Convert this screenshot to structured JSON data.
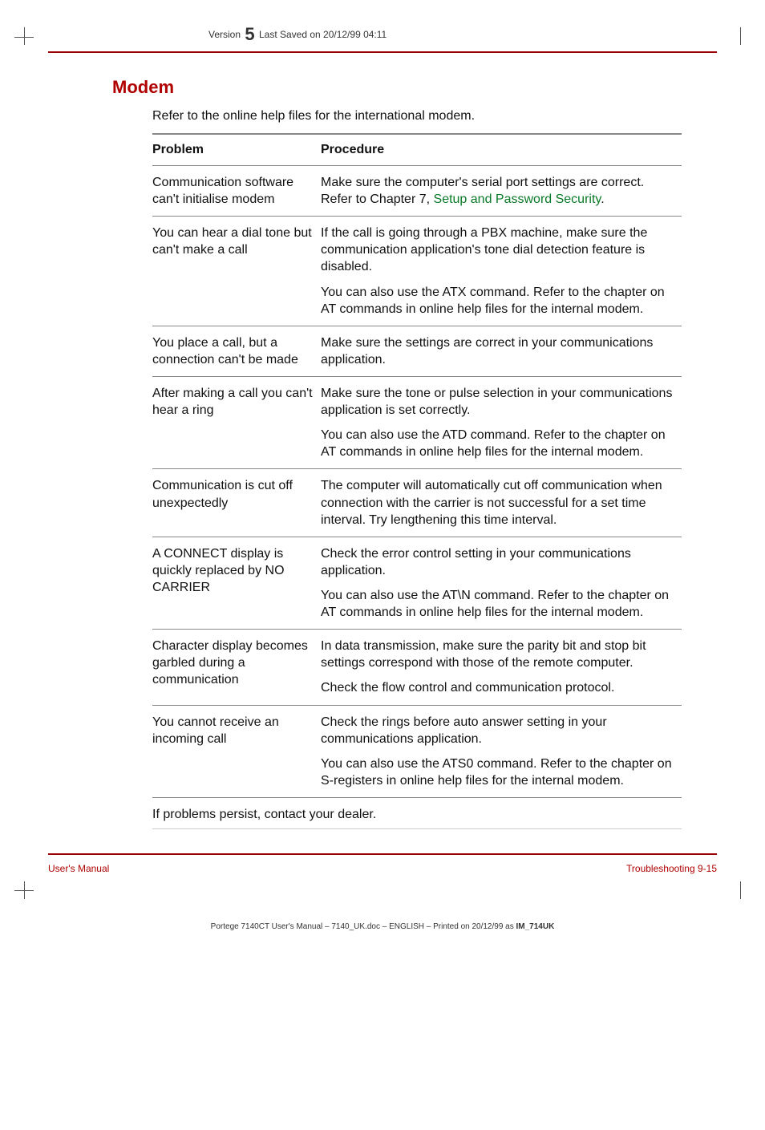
{
  "header": {
    "prefix": "Version",
    "version": "5",
    "suffix": "Last Saved on 20/12/99 04:11"
  },
  "section_title": "Modem",
  "intro": "Refer to the online help files for the international modem.",
  "table": {
    "col_problem": "Problem",
    "col_procedure": "Procedure",
    "rows": [
      {
        "problem": "Communication software can't initialise modem",
        "procedure_parts": [
          {
            "pre": "Make sure the computer's serial port settings are correct. Refer to Chapter 7, ",
            "link": "Setup and Password Security",
            "post": "."
          }
        ]
      },
      {
        "problem": "You can hear a dial tone but can't make a call",
        "procedure_parts": [
          {
            "text": "If the call is going through a PBX machine, make sure the communication application's tone dial detection feature is disabled."
          },
          {
            "text": "You can also use the ATX command. Refer to the chapter on AT commands in online help files for the internal modem."
          }
        ]
      },
      {
        "problem": "You place a call, but a connection can't be made",
        "procedure_parts": [
          {
            "text": "Make sure the settings are correct in your communications application."
          }
        ]
      },
      {
        "problem": "After making a call you can't hear a ring",
        "procedure_parts": [
          {
            "text": "Make sure the tone or pulse selection in your communications application is set correctly."
          },
          {
            "text": "You can also use the ATD command. Refer to the chapter on AT commands in online help files for the internal modem."
          }
        ]
      },
      {
        "problem": "Communication is cut off unexpectedly",
        "procedure_parts": [
          {
            "text": "The computer will automatically cut off communication when connection with the carrier is not successful for a set time interval. Try lengthening this time interval."
          }
        ]
      },
      {
        "problem": "A CONNECT display is quickly replaced by NO CARRIER",
        "procedure_parts": [
          {
            "text": "Check the error control setting in your communications application."
          },
          {
            "text": "You can also use the AT\\N command. Refer to the chapter on AT commands in online help files for the internal modem."
          }
        ]
      },
      {
        "problem": "Character display becomes garbled during a communication",
        "procedure_parts": [
          {
            "text": "In data transmission, make sure the parity bit and stop bit settings correspond with those of the remote computer."
          },
          {
            "text": "Check the flow control and communication protocol."
          }
        ]
      },
      {
        "problem": "You cannot receive an incoming call",
        "procedure_parts": [
          {
            "text": "Check the rings before auto answer setting in your communications application."
          },
          {
            "text": "You can also use the ATS0 command. Refer to the chapter on S-registers in online help files for the internal modem."
          }
        ]
      }
    ]
  },
  "closing": "If problems persist, contact your dealer.",
  "footer": {
    "left": "User's Manual",
    "right": "Troubleshooting  9-15"
  },
  "print_line": {
    "text": "Portege 7140CT User's Manual  – 7140_UK.doc – ENGLISH – Printed on 20/12/99 as ",
    "bold": "IM_714UK"
  },
  "colors": {
    "accent": "#b00000",
    "rule": "#9a0000",
    "link": "#0a7a28",
    "text": "#111111",
    "border": "#888888"
  }
}
